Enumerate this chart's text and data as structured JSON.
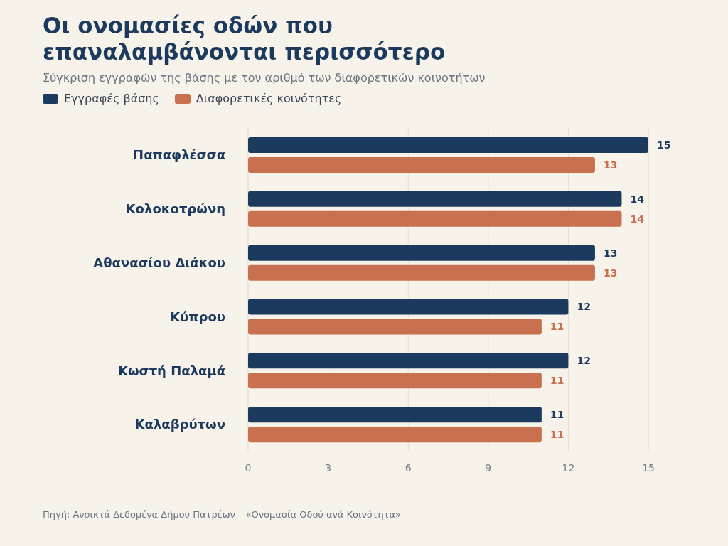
{
  "chart_data": {
    "type": "bar",
    "orientation": "horizontal",
    "title": "Οι ονομασίες οδών που\nεπαναλαμβάνονται περισσότερο",
    "subtitle": "Σύγκριση εγγραφών της βάσης με τον αριθμό των διαφορετικών κοινοτήτων",
    "categories": [
      "Παπαφλέσσα",
      "Κολοκοτρώνη",
      "Αθανασίου Διάκου",
      "Κύπρου",
      "Κωστή Παλαμά",
      "Καλαβρύτων"
    ],
    "series": [
      {
        "name": "Εγγραφές βάσης",
        "color": "#1c3a5e",
        "values": [
          15,
          14,
          13,
          12,
          12,
          11
        ]
      },
      {
        "name": "Διαφορετικές κοινότητες",
        "color": "#c8704f",
        "values": [
          13,
          14,
          13,
          11,
          11,
          11
        ]
      }
    ],
    "xlim": [
      0,
      15
    ],
    "xticks": [
      0,
      3,
      6,
      9,
      12,
      15
    ],
    "grid": "x",
    "legend": "top left",
    "data_labels": true,
    "annotations": [
      "Πηγή: Ανοικτά Δεδομένα Δήμου Πατρέων – «Ονομασία Οδού ανά Κοινότητα»"
    ]
  }
}
